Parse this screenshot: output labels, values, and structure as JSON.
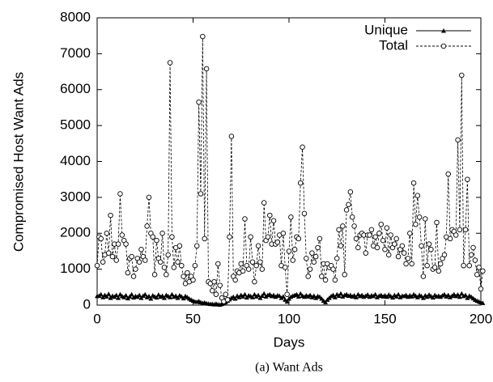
{
  "chart_data": {
    "type": "line",
    "xlabel": "Days",
    "ylabel": "Compromised Host Want Ads",
    "caption": "(a) Want Ads",
    "xlim": [
      0,
      200
    ],
    "xticks": [
      0,
      50,
      100,
      150,
      200
    ],
    "ylim": [
      0,
      8000
    ],
    "yticks": [
      0,
      1000,
      2000,
      3000,
      4000,
      5000,
      6000,
      7000,
      8000
    ],
    "legend": "upper right",
    "x": [
      0,
      1,
      2,
      3,
      4,
      5,
      6,
      7,
      8,
      9,
      10,
      11,
      12,
      13,
      14,
      15,
      16,
      17,
      18,
      19,
      20,
      21,
      22,
      23,
      24,
      25,
      26,
      27,
      28,
      29,
      30,
      31,
      32,
      33,
      34,
      35,
      36,
      37,
      38,
      39,
      40,
      41,
      42,
      43,
      44,
      45,
      46,
      47,
      48,
      49,
      50,
      51,
      52,
      53,
      54,
      55,
      56,
      57,
      58,
      59,
      60,
      61,
      62,
      63,
      64,
      65,
      66,
      67,
      68,
      69,
      70,
      71,
      72,
      73,
      74,
      75,
      76,
      77,
      78,
      79,
      80,
      81,
      82,
      83,
      84,
      85,
      86,
      87,
      88,
      89,
      90,
      91,
      92,
      93,
      94,
      95,
      96,
      97,
      98,
      99,
      100,
      101,
      102,
      103,
      104,
      105,
      106,
      107,
      108,
      109,
      110,
      111,
      112,
      113,
      114,
      115,
      116,
      117,
      118,
      119,
      120,
      121,
      122,
      123,
      124,
      125,
      126,
      127,
      128,
      129,
      130,
      131,
      132,
      133,
      134,
      135,
      136,
      137,
      138,
      139,
      140,
      141,
      142,
      143,
      144,
      145,
      146,
      147,
      148,
      149,
      150,
      151,
      152,
      153,
      154,
      155,
      156,
      157,
      158,
      159,
      160,
      161,
      162,
      163,
      164,
      165,
      166,
      167,
      168,
      169,
      170,
      171,
      172,
      173,
      174,
      175,
      176,
      177,
      178,
      179,
      180,
      181,
      182,
      183,
      184,
      185,
      186,
      187,
      188,
      189,
      190,
      191,
      192,
      193,
      194,
      195,
      196,
      197,
      198,
      199,
      200,
      201
    ],
    "series": [
      {
        "name": "Unique",
        "color": "#000000",
        "dashed": false,
        "marker": "triangle",
        "values": [
          250,
          260,
          300,
          220,
          280,
          240,
          310,
          200,
          260,
          230,
          280,
          200,
          300,
          250,
          220,
          270,
          190,
          240,
          300,
          210,
          250,
          230,
          280,
          200,
          260,
          300,
          220,
          250,
          180,
          270,
          240,
          210,
          290,
          230,
          260,
          200,
          280,
          250,
          220,
          300,
          230,
          260,
          200,
          270,
          240,
          190,
          250,
          220,
          180,
          150,
          120,
          100,
          90,
          110,
          80,
          60,
          70,
          50,
          40,
          30,
          30,
          20,
          40,
          20,
          10,
          30,
          60,
          80,
          120,
          160,
          200,
          230,
          180,
          260,
          220,
          280,
          240,
          300,
          210,
          270,
          250,
          220,
          300,
          240,
          280,
          200,
          260,
          320,
          240,
          280,
          300,
          250,
          280,
          230,
          270,
          260,
          200,
          240,
          150,
          100,
          180,
          230,
          260,
          280,
          300,
          240,
          320,
          260,
          230,
          270,
          240,
          280,
          220,
          260,
          200,
          250,
          230,
          180,
          120,
          80,
          150,
          200,
          250,
          280,
          220,
          300,
          260,
          320,
          240,
          280,
          300,
          260,
          280,
          240,
          270,
          220,
          300,
          250,
          280,
          230,
          260,
          290,
          230,
          270,
          250,
          300,
          220,
          260,
          280,
          240,
          270,
          230,
          290,
          250,
          210,
          280,
          240,
          300,
          220,
          260,
          250,
          280,
          230,
          270,
          240,
          300,
          260,
          220,
          280,
          250,
          200,
          270,
          230,
          290,
          250,
          210,
          280,
          240,
          260,
          230,
          270,
          300,
          240,
          280,
          220,
          260,
          300,
          250,
          290,
          230,
          320,
          250,
          280,
          200,
          260,
          230,
          190,
          150,
          120,
          100,
          80,
          60
        ]
      },
      {
        "name": "Total",
        "color": "#000000",
        "dashed": true,
        "marker": "circle",
        "values": [
          1100,
          1900,
          1850,
          1200,
          1400,
          2000,
          1450,
          2500,
          1350,
          1700,
          1250,
          1700,
          3100,
          1950,
          1800,
          1700,
          900,
          1300,
          1350,
          800,
          1000,
          1300,
          1200,
          1550,
          1350,
          1250,
          2200,
          3000,
          2000,
          1900,
          850,
          1800,
          1300,
          1200,
          2000,
          1050,
          850,
          1400,
          6750,
          1900,
          1050,
          1600,
          1200,
          1650,
          1100,
          800,
          600,
          900,
          650,
          800,
          700,
          1100,
          1650,
          5650,
          3100,
          7480,
          1850,
          6580,
          650,
          600,
          400,
          650,
          300,
          1150,
          550,
          200,
          100,
          300,
          150,
          1900,
          4700,
          800,
          700,
          950,
          900,
          1150,
          950,
          2400,
          1100,
          1000,
          1900,
          1200,
          650,
          1100,
          1650,
          1200,
          1000,
          2850,
          1800,
          1900,
          2500,
          1700,
          2350,
          1700,
          1750,
          1950,
          1100,
          2000,
          1050,
          300,
          1500,
          2450,
          1250,
          1550,
          1900,
          1850,
          3400,
          4400,
          2550,
          1300,
          800,
          1000,
          1450,
          1200,
          1350,
          1600,
          1850,
          800,
          1150,
          700,
          1150,
          1050,
          1100,
          1000,
          700,
          1300,
          2100,
          1650,
          2200,
          850,
          2650,
          2800,
          3150,
          2450,
          2200,
          1850,
          1600,
          1950,
          2000,
          1950,
          1450,
          1950,
          1950,
          2100,
          1650,
          1900,
          1600,
          2000,
          2250,
          1800,
          1550,
          2150,
          1400,
          1950,
          1600,
          1700,
          1850,
          1350,
          1550,
          1650,
          1450,
          1150,
          1300,
          2000,
          1150,
          3400,
          2250,
          3050,
          2450,
          1650,
          800,
          2400,
          1100,
          1700,
          1550,
          1000,
          1050,
          2300,
          950,
          1150,
          1300,
          1400,
          1900,
          3650,
          1850,
          2100,
          2050,
          1950,
          4600,
          2100,
          6400,
          1100,
          2100,
          3500,
          1100,
          1400,
          1600,
          1250,
          850,
          1050,
          450,
          950
        ]
      }
    ]
  }
}
